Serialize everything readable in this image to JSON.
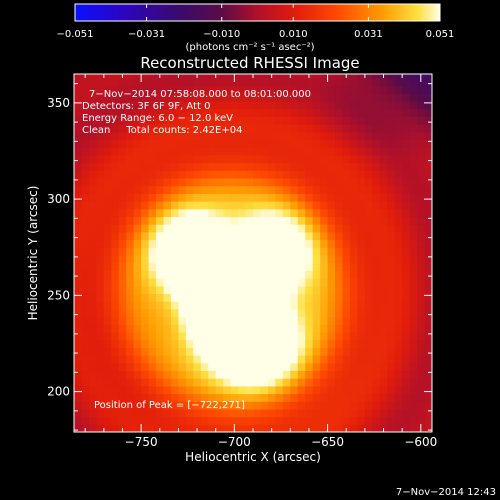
{
  "chart_data": {
    "type": "heatmap",
    "title": "Reconstructed RHESSI Image",
    "xlabel": "Heliocentric X (arcsec)",
    "ylabel": "Heliocentric Y (arcsec)",
    "xlim": [
      -786,
      -594
    ],
    "ylim": [
      179,
      365
    ],
    "x_ticks": [
      -750,
      -700,
      -650,
      -600
    ],
    "y_ticks": [
      200,
      250,
      300,
      350
    ],
    "colorbar": {
      "min": -0.051,
      "max": 0.051,
      "tick_values": [
        -0.051,
        -0.031,
        -0.01,
        0.01,
        0.031,
        0.051
      ],
      "tick_labels": [
        "−0.051",
        "−0.031",
        "−0.010",
        "0.010",
        "0.031",
        "0.051"
      ],
      "unit_label": "(photons cm⁻² s⁻¹ asec⁻²)"
    },
    "annotations": [
      "7−Nov−2014 07:58:08.000 to 08:01:00.000",
      "Detectors: 3F 6F 9F, Att 0",
      "Energy Range: 6.0 − 12.0 keV",
      "Clean     Total counts: 2.42E+04"
    ],
    "peak_label": "Position of Peak = [−722,271]",
    "peak_position": [
      -722,
      271
    ],
    "sources": [
      {
        "x": -722,
        "y": 271,
        "amplitude": 0.051
      },
      {
        "x": -680,
        "y": 272,
        "amplitude": 0.04
      },
      {
        "x": -705,
        "y": 236,
        "amplitude": 0.038
      },
      {
        "x": -688,
        "y": 226,
        "amplitude": 0.047
      }
    ],
    "grid": false,
    "colormap": "rainbow/heat",
    "colors": {
      "background": "#000000",
      "axes": "#ffffff"
    }
  },
  "footer": {
    "timestamp": "7−Nov−2014 12:43"
  }
}
